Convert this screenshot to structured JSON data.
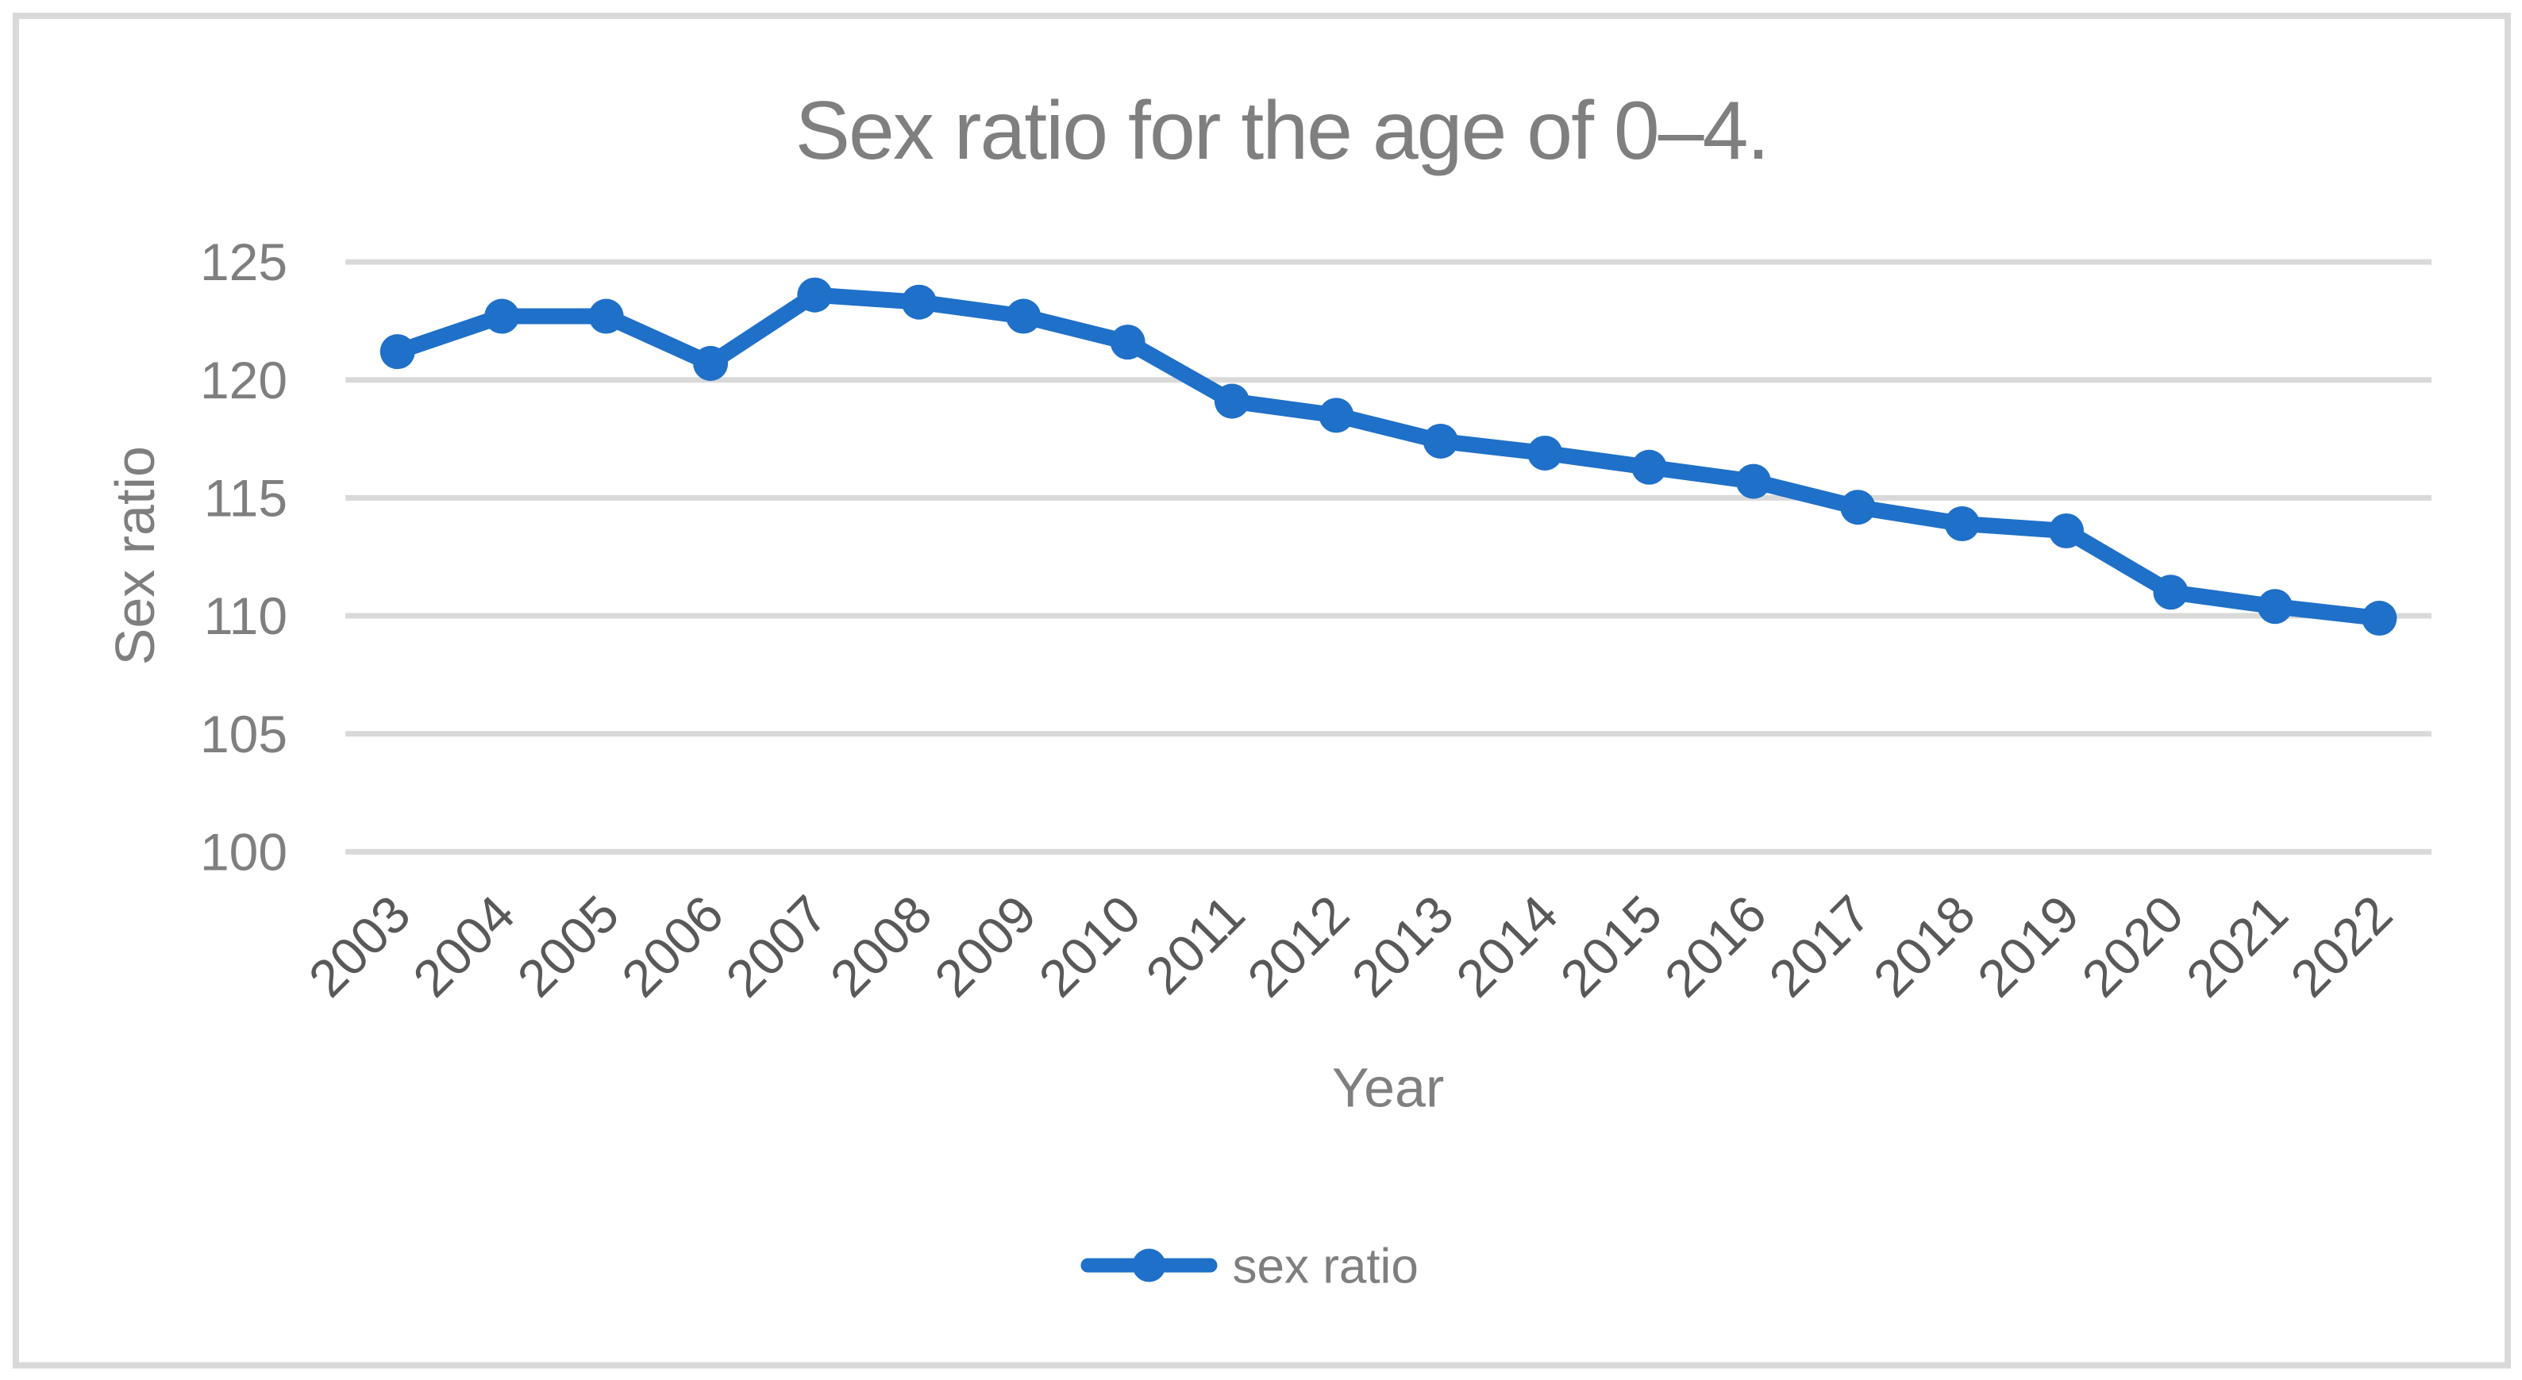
{
  "chart_data": {
    "type": "line",
    "title": "Sex ratio for the age of 0–4.",
    "xlabel": "Year",
    "ylabel": "Sex ratio",
    "x": [
      "2003",
      "2004",
      "2005",
      "2006",
      "2007",
      "2008",
      "2009",
      "2010",
      "2011",
      "2012",
      "2013",
      "2014",
      "2015",
      "2016",
      "2017",
      "2018",
      "2019",
      "2020",
      "2021",
      "2022"
    ],
    "series": [
      {
        "name": "sex ratio",
        "color": "#1F70C8",
        "values": [
          121.2,
          122.7,
          122.7,
          120.7,
          123.6,
          123.3,
          122.7,
          121.6,
          119.1,
          118.5,
          117.4,
          116.9,
          116.3,
          115.7,
          114.6,
          113.9,
          113.6,
          111.0,
          110.4,
          109.9
        ]
      }
    ],
    "ylim": [
      100,
      125
    ],
    "y_ticks": [
      100,
      105,
      110,
      115,
      120,
      125
    ],
    "x_tick_rotation_deg": -45,
    "grid": "horizontal",
    "legend_position": "bottom",
    "marker": "circle",
    "colors": {
      "series": "#1F70C8",
      "gridline": "#D9D9D9",
      "frame_border": "#D9D9D9",
      "title_text": "#7F7F7F",
      "y_tick_text": "#7F7F7F",
      "x_tick_text": "#595959",
      "axis_title_text": "#7F7F7F",
      "legend_text": "#7F7F7F",
      "background": "#FFFFFF"
    }
  }
}
